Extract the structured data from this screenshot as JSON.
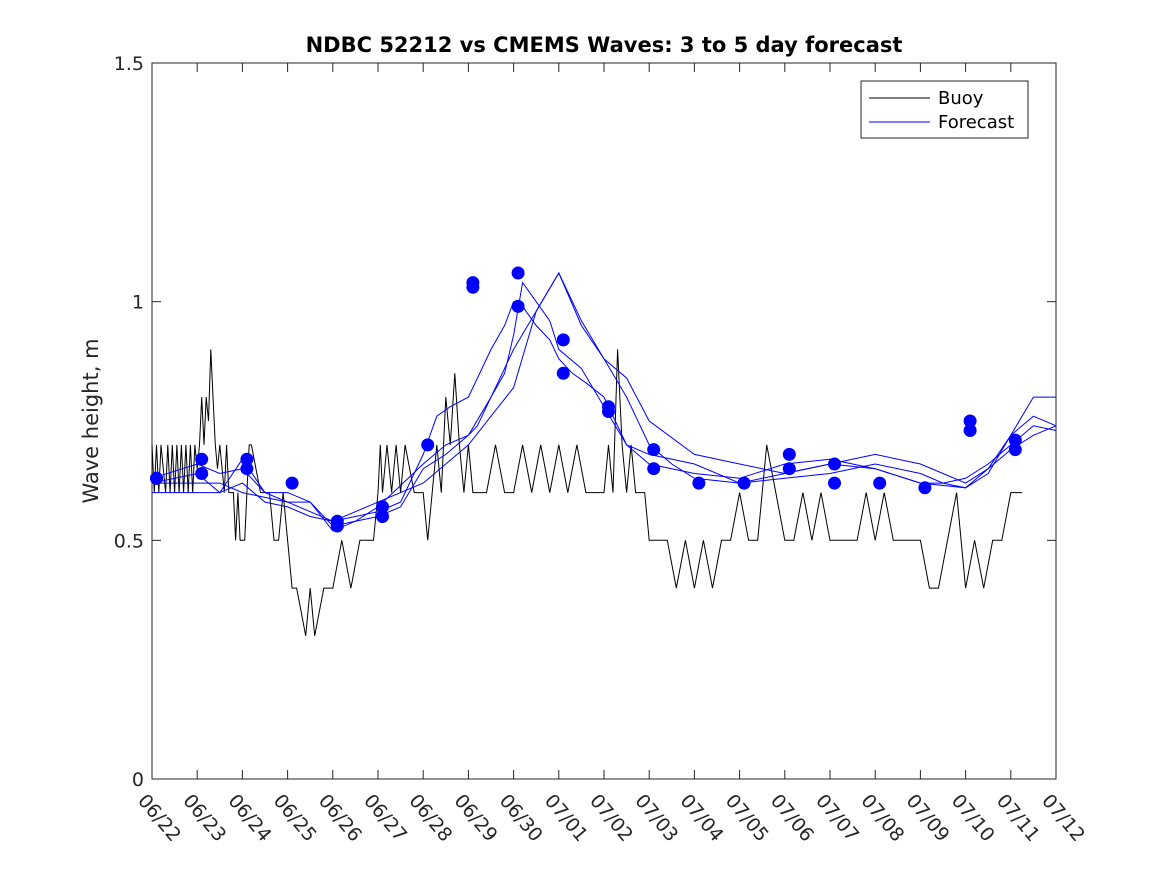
{
  "chart_data": {
    "type": "line",
    "title": "NDBC 52212 vs CMEMS Waves: 3 to 5 day forecast",
    "xlabel": "",
    "ylabel": "Wave height, m",
    "xlim": [
      "06/22",
      "07/12"
    ],
    "ylim": [
      0,
      1.5
    ],
    "yticks": [
      0,
      0.5,
      1,
      1.5
    ],
    "ytick_labels": [
      "0",
      "0.5",
      "1",
      "1.5"
    ],
    "xtick_labels": [
      "06/22",
      "06/23",
      "06/24",
      "06/25",
      "06/26",
      "06/27",
      "06/28",
      "06/29",
      "06/30",
      "07/01",
      "07/02",
      "07/03",
      "07/04",
      "07/05",
      "07/06",
      "07/07",
      "07/08",
      "07/09",
      "07/10",
      "07/11",
      "07/12"
    ],
    "grid": false,
    "legend": {
      "position": "top-right",
      "entries": [
        {
          "name": "Buoy",
          "color": "#000000"
        },
        {
          "name": "Forecast",
          "color": "#0000ff"
        }
      ]
    },
    "colors": {
      "buoy": "#000000",
      "forecast": "#0000ff"
    },
    "x_unit": "day index from 06/22 (0 = 06/22, 20 = 07/12)",
    "buoy": {
      "name": "Buoy",
      "x": [
        0.0,
        0.05,
        0.1,
        0.15,
        0.2,
        0.3,
        0.35,
        0.4,
        0.45,
        0.5,
        0.55,
        0.6,
        0.65,
        0.7,
        0.75,
        0.8,
        0.85,
        0.9,
        0.95,
        1.0,
        1.05,
        1.1,
        1.15,
        1.2,
        1.25,
        1.3,
        1.35,
        1.4,
        1.45,
        1.5,
        1.55,
        1.6,
        1.65,
        1.7,
        1.8,
        1.85,
        1.9,
        1.95,
        2.0,
        2.05,
        2.1,
        2.15,
        2.2,
        2.4,
        2.5,
        2.6,
        2.7,
        2.8,
        2.9,
        3.0,
        3.1,
        3.2,
        3.3,
        3.4,
        3.5,
        3.6,
        3.8,
        4.0,
        4.2,
        4.4,
        4.6,
        4.8,
        4.9,
        5.0,
        5.05,
        5.1,
        5.2,
        5.3,
        5.4,
        5.5,
        5.6,
        5.8,
        6.0,
        6.1,
        6.2,
        6.3,
        6.4,
        6.5,
        6.6,
        6.7,
        6.8,
        6.9,
        7.0,
        7.1,
        7.2,
        7.4,
        7.6,
        7.8,
        8.0,
        8.2,
        8.4,
        8.6,
        8.8,
        9.0,
        9.2,
        9.4,
        9.6,
        9.8,
        10.0,
        10.1,
        10.2,
        10.3,
        10.4,
        10.5,
        10.6,
        10.7,
        10.8,
        10.9,
        11.0,
        11.2,
        11.4,
        11.6,
        11.8,
        12.0,
        12.2,
        12.4,
        12.6,
        12.8,
        13.0,
        13.2,
        13.4,
        13.6,
        13.8,
        14.0,
        14.2,
        14.4,
        14.6,
        14.8,
        15.0,
        15.2,
        15.4,
        15.6,
        15.8,
        16.0,
        16.2,
        16.4,
        16.6,
        16.8,
        17.0,
        17.2,
        17.4,
        17.6,
        17.8,
        18.0,
        18.2,
        18.4,
        18.6,
        18.8,
        19.0,
        19.1,
        19.2,
        19.25
      ],
      "y": [
        0.7,
        0.6,
        0.7,
        0.6,
        0.7,
        0.6,
        0.7,
        0.6,
        0.7,
        0.6,
        0.7,
        0.6,
        0.7,
        0.6,
        0.7,
        0.6,
        0.7,
        0.6,
        0.7,
        0.65,
        0.7,
        0.8,
        0.7,
        0.8,
        0.75,
        0.9,
        0.8,
        0.7,
        0.65,
        0.7,
        0.65,
        0.6,
        0.7,
        0.6,
        0.6,
        0.5,
        0.6,
        0.5,
        0.5,
        0.5,
        0.6,
        0.7,
        0.7,
        0.6,
        0.6,
        0.6,
        0.5,
        0.5,
        0.6,
        0.5,
        0.4,
        0.4,
        0.35,
        0.3,
        0.4,
        0.3,
        0.4,
        0.4,
        0.5,
        0.4,
        0.5,
        0.5,
        0.5,
        0.6,
        0.7,
        0.6,
        0.7,
        0.6,
        0.7,
        0.6,
        0.7,
        0.6,
        0.6,
        0.5,
        0.6,
        0.7,
        0.6,
        0.8,
        0.7,
        0.85,
        0.7,
        0.6,
        0.7,
        0.6,
        0.6,
        0.6,
        0.7,
        0.6,
        0.6,
        0.7,
        0.6,
        0.7,
        0.6,
        0.7,
        0.6,
        0.7,
        0.6,
        0.6,
        0.6,
        0.7,
        0.6,
        0.9,
        0.7,
        0.6,
        0.7,
        0.6,
        0.6,
        0.6,
        0.5,
        0.5,
        0.5,
        0.4,
        0.5,
        0.4,
        0.5,
        0.4,
        0.5,
        0.5,
        0.6,
        0.5,
        0.5,
        0.7,
        0.6,
        0.5,
        0.5,
        0.6,
        0.5,
        0.6,
        0.5,
        0.5,
        0.5,
        0.5,
        0.6,
        0.5,
        0.6,
        0.5,
        0.5,
        0.5,
        0.5,
        0.4,
        0.4,
        0.5,
        0.6,
        0.4,
        0.5,
        0.4,
        0.5,
        0.5,
        0.6,
        0.6,
        0.6,
        0.6
      ]
    },
    "forecast_series": [
      {
        "x": [
          0.0,
          1.0,
          1.5,
          2.0,
          2.5,
          3.0,
          3.5,
          4.0,
          4.5,
          5.0,
          5.5,
          6.0,
          6.3,
          6.6,
          7.0,
          7.3,
          7.5,
          7.8,
          8.0,
          8.2,
          8.5,
          8.8,
          9.0,
          9.3,
          9.6,
          10.0,
          10.5,
          11.0,
          12.0,
          13.0,
          14.0,
          15.0,
          16.0,
          17.0,
          17.5,
          18.0,
          18.5,
          19.0,
          19.5,
          20.0
        ],
        "y": [
          0.62,
          0.62,
          0.62,
          0.6,
          0.59,
          0.58,
          0.56,
          0.54,
          0.55,
          0.56,
          0.58,
          0.68,
          0.76,
          0.78,
          0.8,
          0.86,
          0.9,
          0.95,
          1.0,
          0.99,
          0.95,
          0.92,
          0.88,
          0.85,
          0.83,
          0.8,
          0.7,
          0.66,
          0.64,
          0.63,
          0.66,
          0.67,
          0.65,
          0.62,
          0.62,
          0.63,
          0.66,
          0.7,
          0.74,
          0.73
        ]
      },
      {
        "x": [
          0.0,
          1.0,
          1.5,
          2.0,
          2.5,
          3.0,
          3.5,
          4.0,
          4.5,
          5.0,
          5.5,
          6.0,
          6.5,
          7.0,
          7.2,
          7.5,
          7.8,
          8.0,
          8.2,
          8.5,
          8.8,
          9.0,
          9.5,
          10.0,
          10.5,
          11.0,
          12.0,
          13.0,
          14.0,
          15.0,
          16.0,
          17.0,
          18.0,
          18.5,
          19.0,
          19.5,
          20.0
        ],
        "y": [
          0.63,
          0.66,
          0.64,
          0.65,
          0.6,
          0.6,
          0.58,
          0.53,
          0.54,
          0.55,
          0.57,
          0.65,
          0.68,
          0.72,
          0.74,
          0.8,
          0.85,
          0.93,
          1.04,
          1.0,
          0.96,
          0.9,
          0.86,
          0.78,
          0.7,
          0.68,
          0.66,
          0.62,
          0.64,
          0.66,
          0.65,
          0.62,
          0.61,
          0.65,
          0.69,
          0.72,
          0.74
        ]
      },
      {
        "x": [
          0.0,
          1.0,
          1.5,
          2.0,
          2.5,
          3.0,
          3.5,
          4.0,
          4.5,
          5.0,
          5.5,
          6.0,
          6.5,
          7.0,
          7.5,
          8.0,
          8.5,
          9.0,
          9.5,
          10.0,
          10.5,
          11.0,
          11.5,
          12.0,
          13.0,
          14.0,
          15.0,
          16.0,
          17.0,
          17.5,
          18.0,
          18.5,
          19.0,
          19.5,
          20.0
        ],
        "y": [
          0.6,
          0.6,
          0.6,
          0.62,
          0.58,
          0.57,
          0.55,
          0.54,
          0.56,
          0.58,
          0.6,
          0.62,
          0.66,
          0.7,
          0.76,
          0.82,
          0.98,
          1.06,
          0.95,
          0.88,
          0.8,
          0.7,
          0.66,
          0.63,
          0.62,
          0.63,
          0.64,
          0.66,
          0.64,
          0.62,
          0.61,
          0.64,
          0.72,
          0.8,
          0.8
        ]
      },
      {
        "x": [
          0.0,
          1.0,
          1.5,
          2.0,
          2.5,
          3.0,
          3.5,
          4.0,
          4.5,
          5.0,
          6.0,
          6.5,
          7.0,
          7.5,
          8.0,
          8.5,
          9.0,
          9.5,
          10.0,
          10.5,
          11.0,
          12.0,
          13.0,
          14.0,
          15.0,
          16.0,
          17.0,
          17.5,
          18.0,
          18.5,
          19.0,
          19.5,
          20.0
        ],
        "y": [
          0.62,
          0.64,
          0.6,
          0.67,
          0.6,
          0.58,
          0.58,
          0.52,
          0.54,
          0.57,
          0.66,
          0.7,
          0.72,
          0.8,
          0.9,
          0.98,
          1.06,
          0.96,
          0.88,
          0.84,
          0.75,
          0.68,
          0.66,
          0.64,
          0.66,
          0.68,
          0.66,
          0.64,
          0.62,
          0.65,
          0.72,
          0.76,
          0.74
        ]
      }
    ],
    "forecast_markers": {
      "x": [
        0.1,
        0.1,
        1.1,
        1.1,
        2.1,
        2.1,
        3.1,
        4.1,
        4.1,
        5.1,
        5.1,
        6.1,
        7.1,
        7.1,
        8.1,
        8.1,
        9.1,
        9.1,
        10.1,
        10.1,
        11.1,
        11.1,
        12.1,
        13.1,
        14.1,
        14.1,
        15.1,
        15.1,
        16.1,
        17.1,
        18.1,
        18.1,
        19.1,
        19.1
      ],
      "y": [
        0.63,
        0.63,
        0.67,
        0.64,
        0.67,
        0.65,
        0.62,
        0.54,
        0.53,
        0.57,
        0.55,
        0.7,
        1.04,
        1.03,
        1.06,
        0.99,
        0.92,
        0.85,
        0.78,
        0.77,
        0.69,
        0.65,
        0.62,
        0.62,
        0.68,
        0.65,
        0.66,
        0.62,
        0.62,
        0.61,
        0.75,
        0.73,
        0.71,
        0.69
      ]
    }
  }
}
